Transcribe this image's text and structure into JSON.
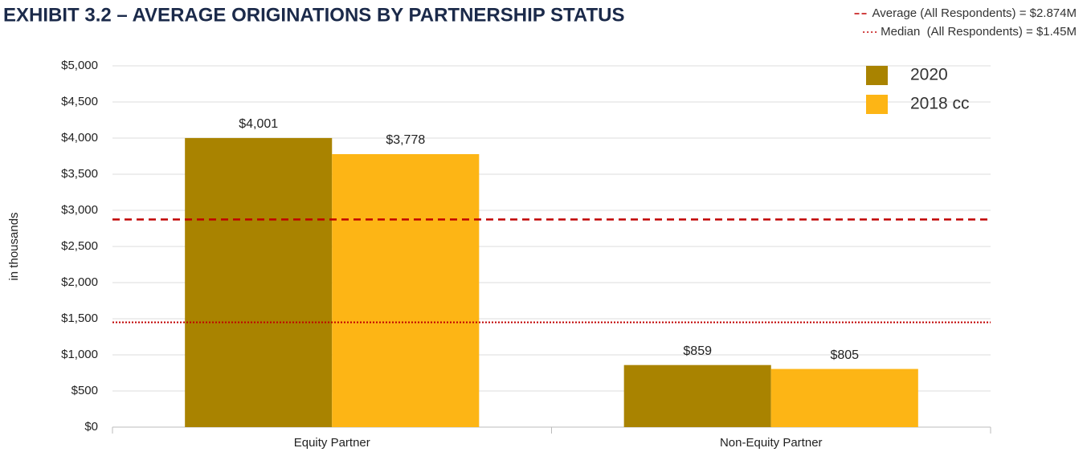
{
  "chart_data": {
    "type": "bar",
    "title": "EXHIBIT 3.2 – AVERAGE ORIGINATIONS BY PARTNERSHIP STATUS",
    "y_label": "in thousands",
    "categories": [
      "Equity Partner",
      "Non-Equity Partner"
    ],
    "series": [
      {
        "name": "2020",
        "color": "#a98300",
        "values": [
          4001,
          859
        ],
        "value_labels": [
          "$4,001",
          "$859"
        ]
      },
      {
        "name": "2018 cc",
        "color": "#fdb515",
        "values": [
          3778,
          805
        ],
        "value_labels": [
          "$3,778",
          "$805"
        ]
      }
    ],
    "reference_lines": [
      {
        "label": "Average (All Respondents) = $2.874M",
        "value": 2874,
        "style": "dashed",
        "color": "#c00000"
      },
      {
        "label": "Median  (All Respondents) = $1.45M",
        "value": 1450,
        "style": "dotted",
        "color": "#c00000"
      }
    ],
    "ylim": [
      0,
      5000
    ],
    "yticks": [
      {
        "value": 0,
        "label": "$0"
      },
      {
        "value": 500,
        "label": "$500"
      },
      {
        "value": 1000,
        "label": "$1,000"
      },
      {
        "value": 1500,
        "label": "$1,500"
      },
      {
        "value": 2000,
        "label": "$2,000"
      },
      {
        "value": 2500,
        "label": "$2,500"
      },
      {
        "value": 3000,
        "label": "$3,000"
      },
      {
        "value": 3500,
        "label": "$3,500"
      },
      {
        "value": 4000,
        "label": "$4,000"
      },
      {
        "value": 4500,
        "label": "$4,500"
      },
      {
        "value": 5000,
        "label": "$5,000"
      }
    ],
    "grid": true,
    "legend": "upper right"
  }
}
